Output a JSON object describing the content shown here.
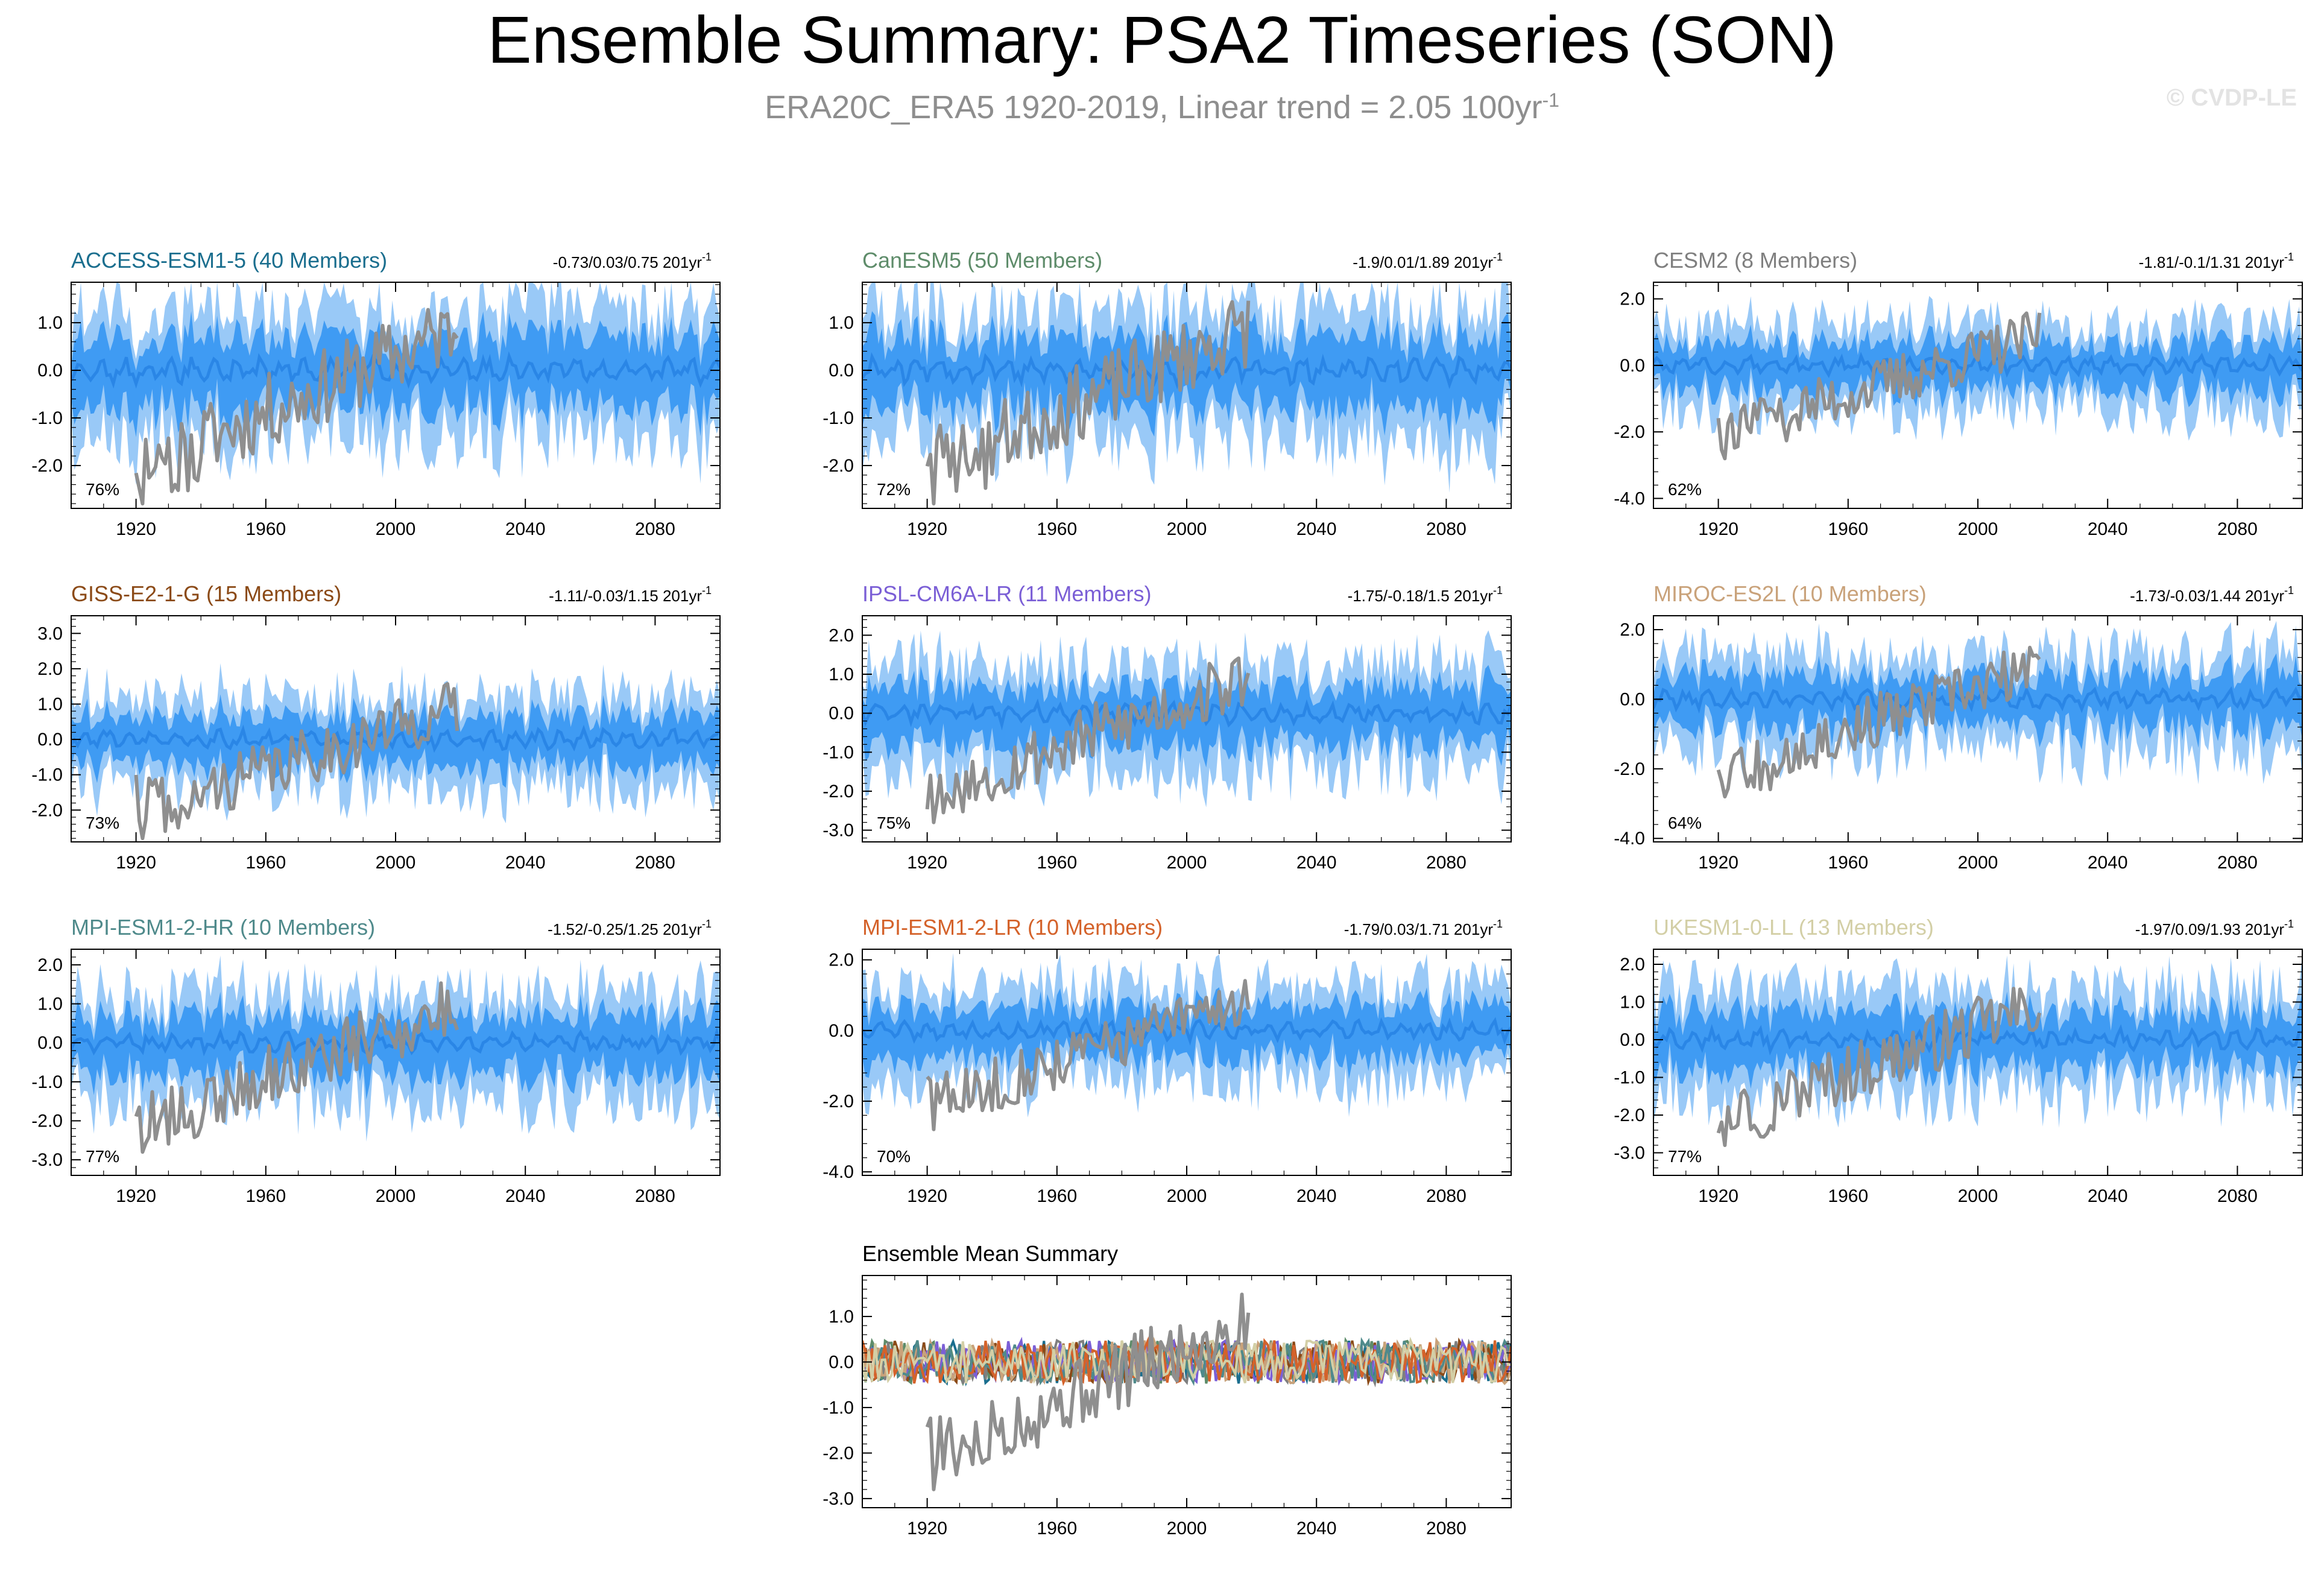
{
  "title": "Ensemble Summary: PSA2 Timeseries (SON)",
  "subtitle": {
    "text": "ERA20C_ERA5 1920-2019, Linear trend = 2.05 100yr",
    "exponent": "-1"
  },
  "copyright": "© CVDP-LE",
  "colors": {
    "outer_band": "#99c9f7",
    "inner_band": "#3f9bf3",
    "ensemble_mean": "#2a86e6",
    "observations": "#8f8f8f"
  },
  "chart_data": [
    {
      "type": "line",
      "title": "ACCESS-ESM1-5 (40 Members)",
      "title_color": "#1a6e8e",
      "stats": "-0.73/0.03/0.75 201yr",
      "stats_exp": "-1",
      "percent": "76%",
      "xlim": [
        1900,
        2100
      ],
      "ylim": [
        -2.9,
        1.85
      ],
      "yticks": [
        -2,
        -1,
        0,
        1
      ],
      "ytick_labels": [
        "-2.0",
        "-1.0",
        "0.0",
        "1.0"
      ],
      "xticks": [
        1920,
        1960,
        2000,
        2040,
        2080
      ],
      "xtick_labels": [
        "1920",
        "1960",
        "2000",
        "2040",
        "2080"
      ],
      "spread": 0.75,
      "obs_min": -2.8,
      "seed": 11
    },
    {
      "type": "line",
      "title": "CanESM5 (50 Members)",
      "title_color": "#5e8c6a",
      "stats": "-1.9/0.01/1.89 201yr",
      "stats_exp": "-1",
      "percent": "72%",
      "xlim": [
        1900,
        2100
      ],
      "ylim": [
        -2.9,
        1.85
      ],
      "yticks": [
        -2,
        -1,
        0,
        1
      ],
      "ytick_labels": [
        "-2.0",
        "-1.0",
        "0.0",
        "1.0"
      ],
      "xticks": [
        1920,
        1960,
        2000,
        2040,
        2080
      ],
      "xtick_labels": [
        "1920",
        "1960",
        "2000",
        "2040",
        "2080"
      ],
      "spread": 0.8,
      "obs_min": -2.8,
      "seed": 23
    },
    {
      "type": "line",
      "title": "CESM2 (8 Members)",
      "title_color": "#7f7f7f",
      "stats": "-1.81/-0.1/1.31 201yr",
      "stats_exp": "-1",
      "percent": "62%",
      "xlim": [
        1900,
        2100
      ],
      "ylim": [
        -4.3,
        2.5
      ],
      "yticks": [
        -4,
        -2,
        0,
        2
      ],
      "ytick_labels": [
        "-4.0",
        "-2.0",
        "0.0",
        "2.0"
      ],
      "xticks": [
        1920,
        1960,
        2000,
        2040,
        2080
      ],
      "xtick_labels": [
        "1920",
        "1960",
        "2000",
        "2040",
        "2080"
      ],
      "spread": 0.75,
      "obs_min": -2.8,
      "seed": 37
    },
    {
      "type": "line",
      "title": "GISS-E2-1-G (15 Members)",
      "title_color": "#8b4a17",
      "stats": "-1.11/-0.03/1.15 201yr",
      "stats_exp": "-1",
      "percent": "73%",
      "xlim": [
        1900,
        2100
      ],
      "ylim": [
        -2.9,
        3.5
      ],
      "yticks": [
        -2,
        -1,
        0,
        1,
        2,
        3
      ],
      "ytick_labels": [
        "-2.0",
        "-1.0",
        "0.0",
        "1.0",
        "2.0",
        "3.0"
      ],
      "xticks": [
        1920,
        1960,
        2000,
        2040,
        2080
      ],
      "xtick_labels": [
        "1920",
        "1960",
        "2000",
        "2040",
        "2080"
      ],
      "spread": 0.75,
      "obs_min": -2.8,
      "seed": 41
    },
    {
      "type": "line",
      "title": "IPSL-CM6A-LR (11 Members)",
      "title_color": "#7b5fd6",
      "stats": "-1.75/-0.18/1.5 201yr",
      "stats_exp": "-1",
      "percent": "75%",
      "xlim": [
        1900,
        2100
      ],
      "ylim": [
        -3.3,
        2.5
      ],
      "yticks": [
        -3,
        -2,
        -1,
        0,
        1,
        2
      ],
      "ytick_labels": [
        "-3.0",
        "-2.0",
        "-1.0",
        "0.0",
        "1.0",
        "2.0"
      ],
      "xticks": [
        1920,
        1960,
        2000,
        2040,
        2080
      ],
      "xtick_labels": [
        "1920",
        "1960",
        "2000",
        "2040",
        "2080"
      ],
      "spread": 0.8,
      "obs_min": -2.8,
      "seed": 53
    },
    {
      "type": "line",
      "title": "MIROC-ES2L (10 Members)",
      "title_color": "#c9a27a",
      "stats": "-1.73/-0.03/1.44 201yr",
      "stats_exp": "-1",
      "percent": "64%",
      "xlim": [
        1900,
        2100
      ],
      "ylim": [
        -4.1,
        2.4
      ],
      "yticks": [
        -4,
        -2,
        0,
        2
      ],
      "ytick_labels": [
        "-4.0",
        "-2.0",
        "0.0",
        "2.0"
      ],
      "xticks": [
        1920,
        1960,
        2000,
        2040,
        2080
      ],
      "xtick_labels": [
        "1920",
        "1960",
        "2000",
        "2040",
        "2080"
      ],
      "spread": 0.8,
      "obs_min": -2.8,
      "seed": 67
    },
    {
      "type": "line",
      "title": "MPI-ESM1-2-HR (10 Members)",
      "title_color": "#4f8a8b",
      "stats": "-1.52/-0.25/1.25 201yr",
      "stats_exp": "-1",
      "percent": "77%",
      "xlim": [
        1900,
        2100
      ],
      "ylim": [
        -3.4,
        2.4
      ],
      "yticks": [
        -3,
        -2,
        -1,
        0,
        1,
        2
      ],
      "ytick_labels": [
        "-3.0",
        "-2.0",
        "-1.0",
        "0.0",
        "1.0",
        "2.0"
      ],
      "xticks": [
        1920,
        1960,
        2000,
        2040,
        2080
      ],
      "xtick_labels": [
        "1920",
        "1960",
        "2000",
        "2040",
        "2080"
      ],
      "spread": 0.8,
      "obs_min": -2.8,
      "seed": 79
    },
    {
      "type": "line",
      "title": "MPI-ESM1-2-LR (10 Members)",
      "title_color": "#d4622a",
      "stats": "-1.79/0.03/1.71 201yr",
      "stats_exp": "-1",
      "percent": "70%",
      "xlim": [
        1900,
        2100
      ],
      "ylim": [
        -4.1,
        2.3
      ],
      "yticks": [
        -4,
        -2,
        0,
        2
      ],
      "ytick_labels": [
        "-4.0",
        "-2.0",
        "0.0",
        "2.0"
      ],
      "xticks": [
        1920,
        1960,
        2000,
        2040,
        2080
      ],
      "xtick_labels": [
        "1920",
        "1960",
        "2000",
        "2040",
        "2080"
      ],
      "spread": 0.8,
      "obs_min": -2.8,
      "seed": 83
    },
    {
      "type": "line",
      "title": "UKESM1-0-LL (13 Members)",
      "title_color": "#d3cfa6",
      "stats": "-1.97/0.09/1.93 201yr",
      "stats_exp": "-1",
      "percent": "77%",
      "xlim": [
        1900,
        2100
      ],
      "ylim": [
        -3.6,
        2.4
      ],
      "yticks": [
        -3,
        -2,
        -1,
        0,
        1,
        2
      ],
      "ytick_labels": [
        "-3.0",
        "-2.0",
        "-1.0",
        "0.0",
        "1.0",
        "2.0"
      ],
      "xticks": [
        1920,
        1960,
        2000,
        2040,
        2080
      ],
      "xtick_labels": [
        "1920",
        "1960",
        "2000",
        "2040",
        "2080"
      ],
      "spread": 0.8,
      "obs_min": -2.8,
      "seed": 97
    },
    {
      "type": "line",
      "title": "Ensemble Mean Summary",
      "title_color": "#000000",
      "summary": true,
      "xlim": [
        1900,
        2100
      ],
      "ylim": [
        -3.2,
        1.9
      ],
      "yticks": [
        -3,
        -2,
        -1,
        0,
        1
      ],
      "ytick_labels": [
        "-3.0",
        "-2.0",
        "-1.0",
        "0.0",
        "1.0"
      ],
      "xticks": [
        1920,
        1960,
        2000,
        2040,
        2080
      ],
      "xtick_labels": [
        "1920",
        "1960",
        "2000",
        "2040",
        "2080"
      ],
      "series_colors": [
        "#1a6e8e",
        "#5e8c6a",
        "#7f7f7f",
        "#8b4a17",
        "#7b5fd6",
        "#c9a27a",
        "#4f8a8b",
        "#d4622a",
        "#d3cfa6"
      ],
      "obs_min": -2.8,
      "seed": 5
    }
  ]
}
